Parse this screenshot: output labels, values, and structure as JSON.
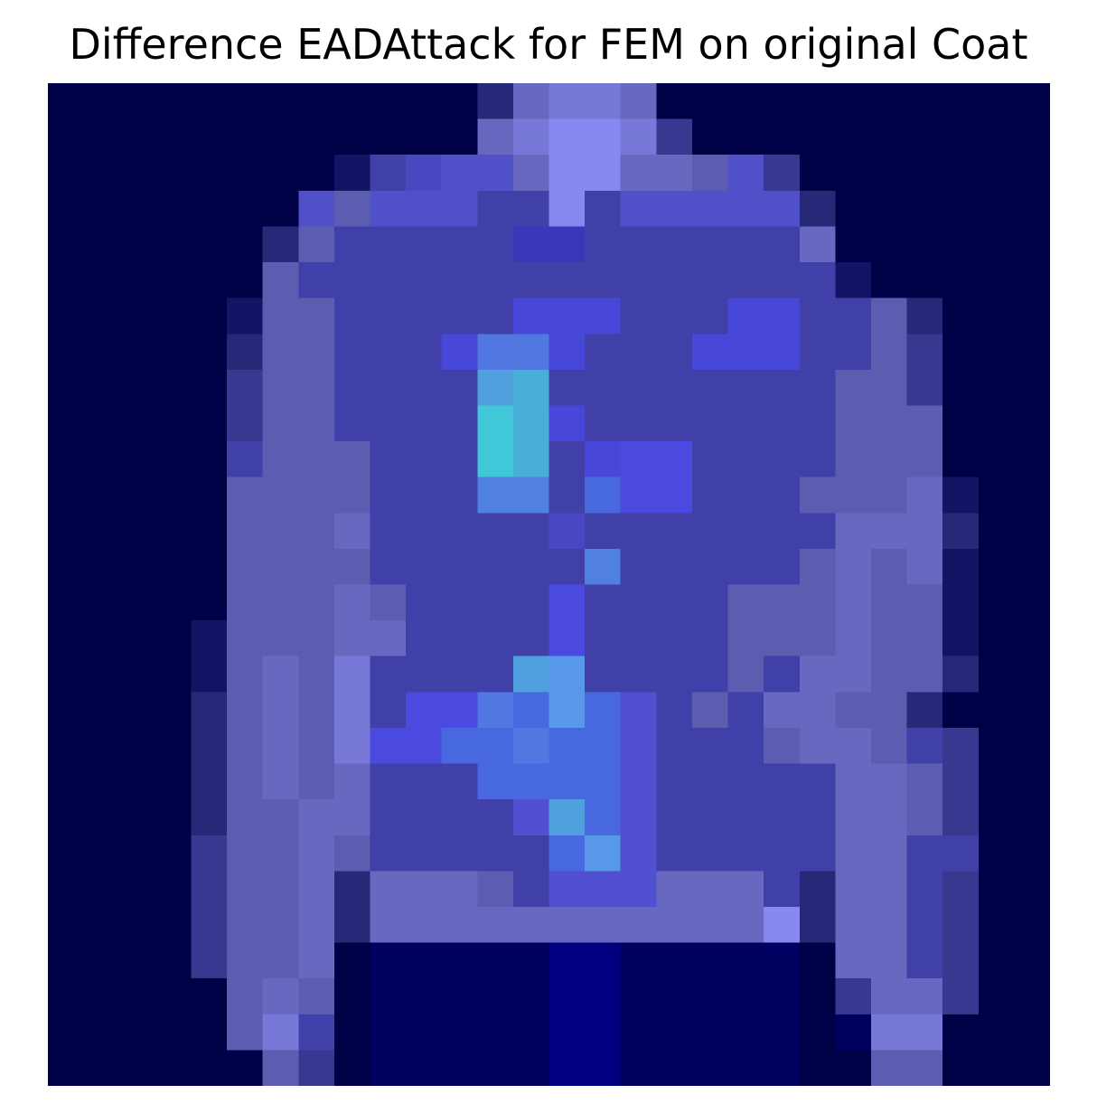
{
  "chart_data": {
    "type": "heatmap",
    "title": "Difference EADAttack for FEM on original Coat",
    "grid": false,
    "axes_visible": false,
    "rows": 28,
    "cols": 28,
    "palette": {
      "a": "#000046",
      "b": "#000060",
      "c": "#000080",
      "d": "#141464",
      "e": "#282878",
      "f": "#383890",
      "g": "#4040a8",
      "h": "#4848c0",
      "i": "#5050c8",
      "j": "#5c5cb0",
      "k": "#6868c0",
      "l": "#7878d8",
      "m": "#8888f0",
      "n": "#9090ff",
      "o": "#4040d8",
      "p": "#4a4ae0",
      "q": "#4848d8",
      "r": "#5078e0",
      "s": "#50a0e0",
      "t": "#40c8d8",
      "u": "#48b0d8",
      "v": "#5080e0",
      "w": "#5898e8",
      "x": "#5050d0",
      "y": "#4868e0",
      "z": "#3838b8"
    },
    "pixels": [
      "aaaaaaaaaaaaekllkaaaaaaaaaaa",
      "aaaaaaaaaaaaklmmlfaaaaaaaaaa",
      "aaaaaaaadghiikmmkkjifaaaaaaa",
      "aaaaaaaijiiiggmgiiiiieaaaaaa",
      "aaaaaaejgggggzzggggggkaaaaaa",
      "aaaaaajgggggggggggggggdaaaaa",
      "aaaaadjjgggggqqqgggqqggjeaaa",
      "aaaaaejjgggqrrqgggqqqggjfaaa",
      "aaaaafjjggggsuggggggggjjfaaa",
      "aaaaafjjggggtuqgggggggjjjaaa",
      "aaaaagjjjgggtugqppggggjjjaaa",
      "aaaaajjjjgggvvgyppgggjjjkdaa",
      "aaaaajjjkggggghgggggggkkkeaa",
      "aaaaajjjjggggggvgggggjkjkdaa",
      "aaaaajjjkjggggpggggjjjkjjdaa",
      "aaaadjjjkkggggpggggjjjkjjdaa",
      "aaaadjkjlggggswggggjgkkjjeaa",
      "aaaaejkjlgpprywyxgjgkkjjeaa",
      "aaaaejkjlppyyryyxgggjkkjgfaa",
      "aaaaejkjkgggyyyyxgggggkkjfaa",
      "aaaaejjkkggggxsyxgggggkkjfaa",
      "aaaafjjkjgggggywxgggggkkggaa",
      "aaaafjjkekkkjgxxxkkkgekkgfaa",
      "aaaafjjkekkkkkkkkkkkmekkgfaa",
      "aaaafjjkabbbbbccbbbbbakkgfaa",
      "aaaaajkjabbbbbccbbbbbafkkfaa",
      "aaaaajlgabbbbbccbbbbbabllaaa",
      "aaaaaajfabbbbbccbbbbbaajjaaa"
    ]
  }
}
